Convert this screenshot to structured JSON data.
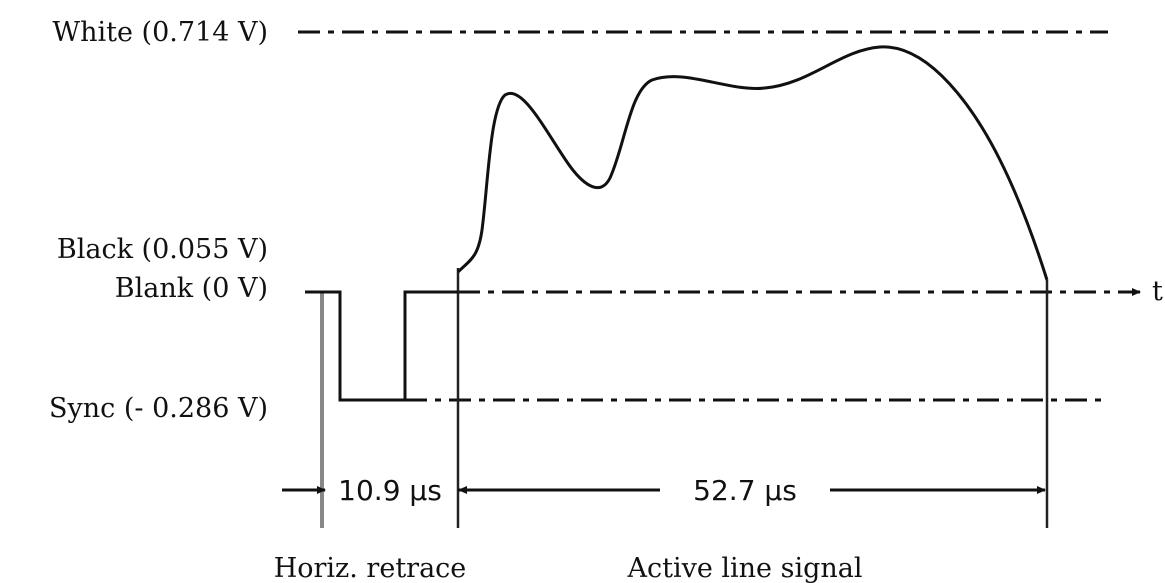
{
  "levels": {
    "white": "White (0.714 V)",
    "black": "Black (0.055 V)",
    "blank": "Blank (0 V)",
    "sync": "Sync (- 0.286 V)"
  },
  "axis": {
    "time_label": "t"
  },
  "durations": {
    "retrace": "10.9 μs",
    "active": "52.7 μs"
  },
  "sections": {
    "retrace": "Horiz. retrace",
    "active": "Active line signal"
  }
}
